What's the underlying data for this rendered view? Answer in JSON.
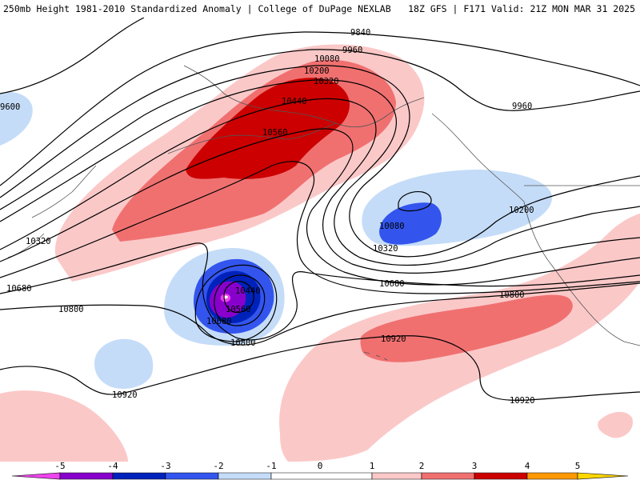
{
  "header": {
    "left": "250mb Height 1981-2010 Standardized Anomaly | College of DuPage NEXLAB",
    "right": "18Z GFS | F171 Valid: 21Z MON MAR 31 2025"
  },
  "contour_labels": {
    "c9600": "9600",
    "c9840": "9840",
    "c9960_top": "9960",
    "c9960_right": "9960",
    "c10080_n": "10080",
    "c10080_low": "10080",
    "c10200_n": "10200",
    "c10200_se": "10200",
    "c10320_n": "10320",
    "c10320_w": "10320",
    "c10320_s": "10320",
    "c10440_n": "10440",
    "c10440_low": "10440",
    "c10560_n": "10560",
    "c10560_low": "10560",
    "c10680_w": "10680",
    "c10680_low": "10680",
    "c10680_mid": "10680",
    "c10800_w": "10800",
    "c10800_low": "10800",
    "c10800_e": "10800",
    "c10920_w": "10920",
    "c10920_mid": "10920",
    "c10920_e": "10920"
  },
  "colorbar": {
    "ticks": [
      "-5",
      "-4",
      "-3",
      "-2",
      "-1",
      "0",
      "1",
      "2",
      "3",
      "4",
      "5"
    ],
    "colors": {
      "lt_-5": "#ee44ee",
      "-5_-4": "#8800cc",
      "-4_-3": "#0022bb",
      "-3_-2": "#3355ee",
      "-2_-1": "#c4dcf8",
      "-1_1": "#ffffff",
      "1_2": "#fbc8c8",
      "2_3": "#f07070",
      "3_4": "#cc0000",
      "4_5": "#ff9900",
      "gt_5": "#ffd700"
    }
  },
  "colors": {
    "contour": "#000000",
    "coast": "#555555"
  }
}
